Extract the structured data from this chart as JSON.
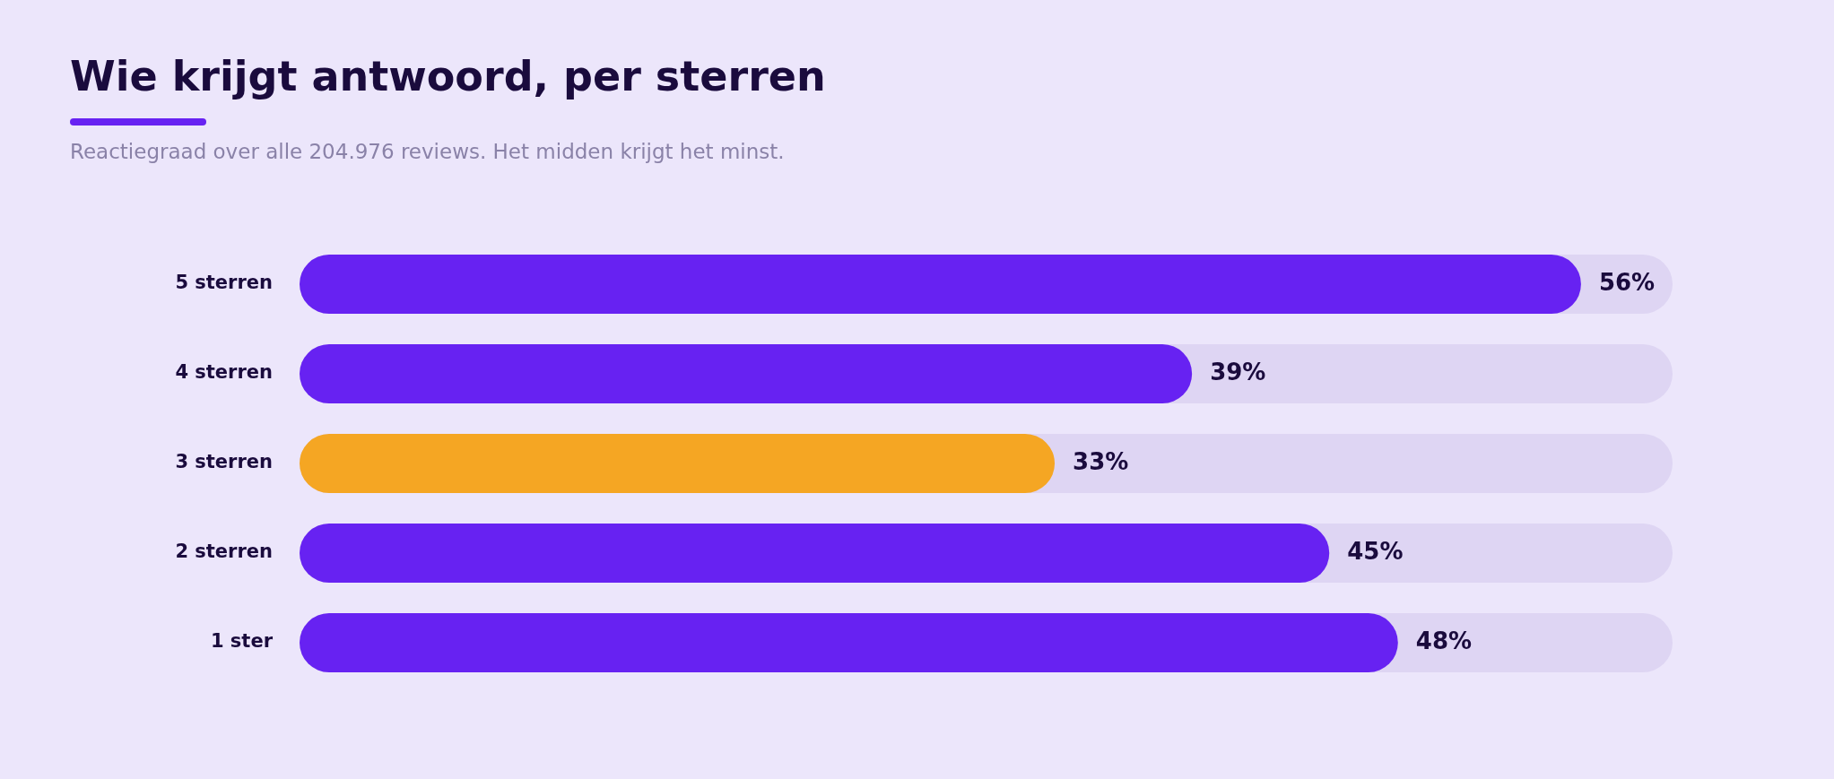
{
  "chart_data": {
    "type": "bar",
    "orientation": "horizontal",
    "title": "Wie krijgt antwoord, per sterren",
    "subtitle": "Reactiegraad over alle 204.976 reviews. Het midden krijgt het minst.",
    "categories": [
      "5 sterren",
      "4 sterren",
      "3 sterren",
      "2 sterren",
      "1 ster"
    ],
    "values": [
      56,
      39,
      33,
      45,
      48
    ],
    "colors": [
      "#6722f2",
      "#6722f2",
      "#f5a623",
      "#6722f2",
      "#6722f2"
    ],
    "value_labels": [
      "56%",
      "39%",
      "33%",
      "45%",
      "48%"
    ],
    "xlim": [
      0,
      60
    ],
    "tick_labels": "y",
    "legend": false
  }
}
